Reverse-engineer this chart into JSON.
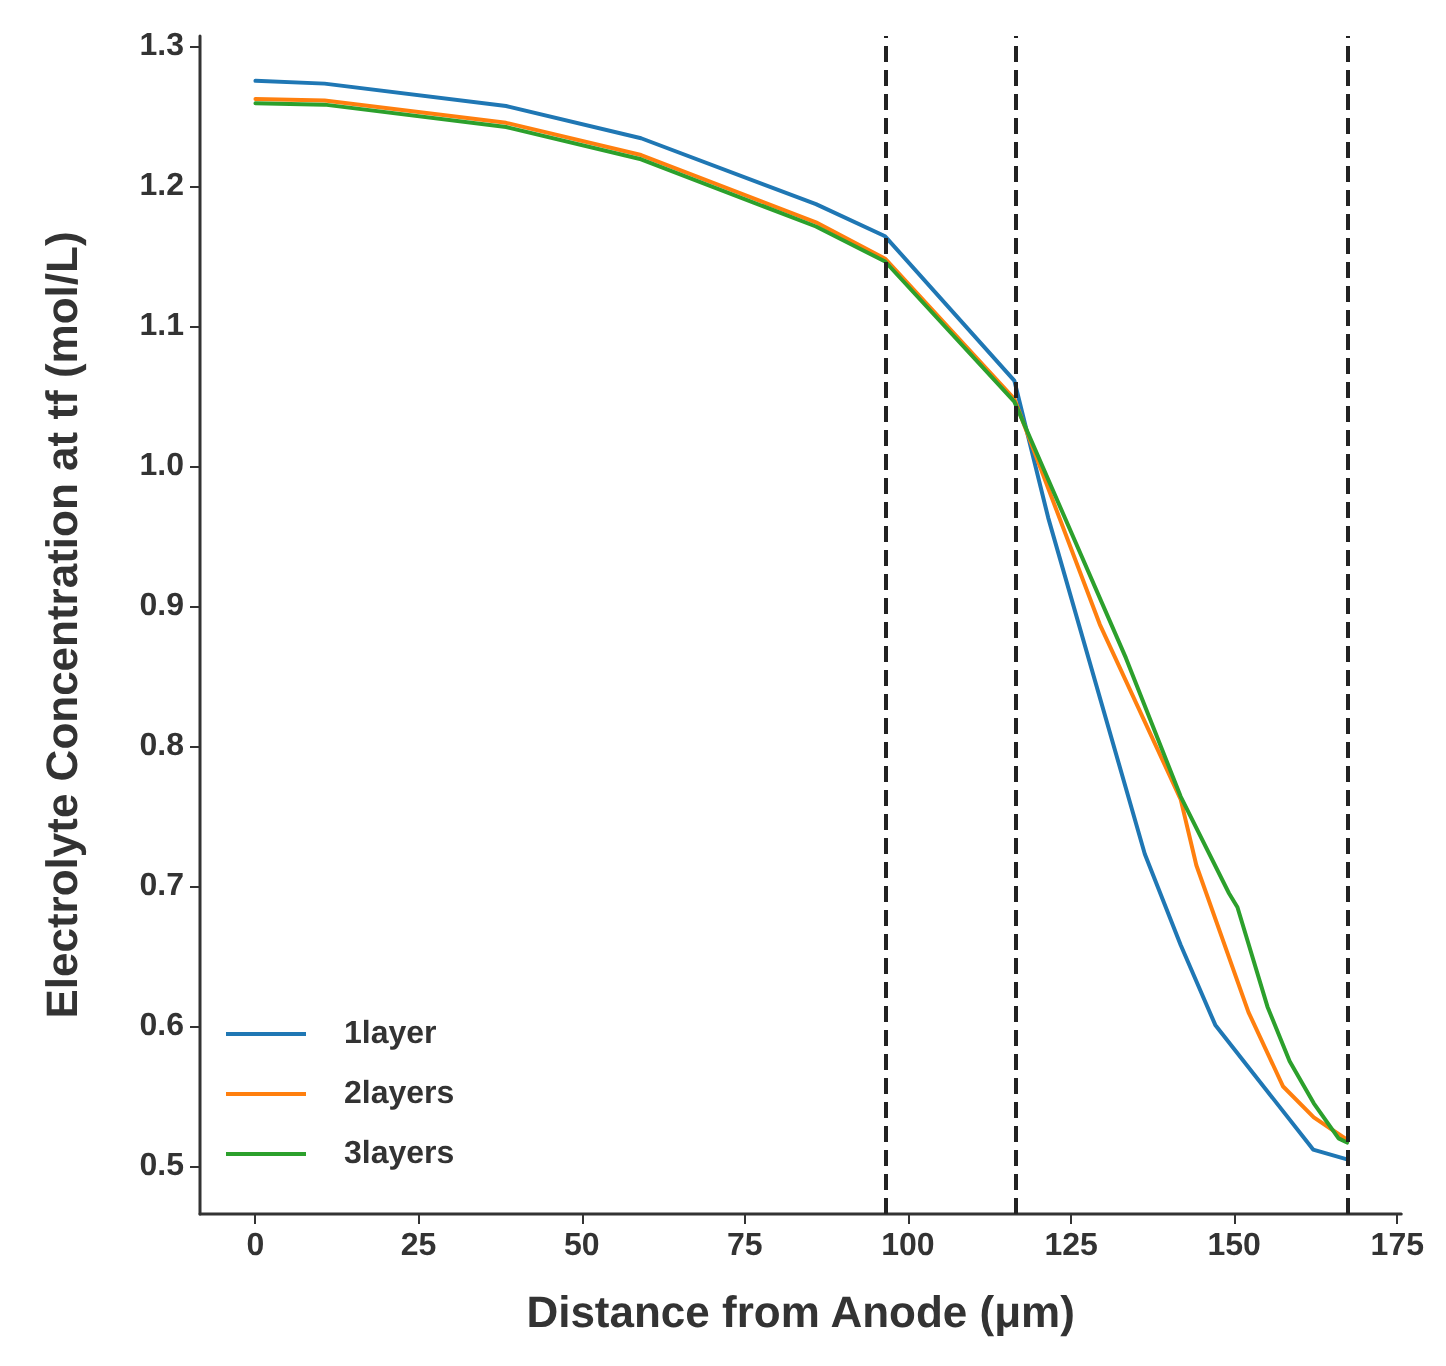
{
  "chart_data": {
    "type": "line",
    "xlabel": "Distance from Anode (μm)",
    "ylabel": "Electrolyte Concentration at tf (mol/L)",
    "xlim": [
      -8.5,
      175.6
    ],
    "xticks": [
      0,
      25,
      50,
      75,
      100,
      125,
      150,
      175
    ],
    "ylim": [
      0.466,
      1.307
    ],
    "yticks": [
      0.5,
      0.6,
      0.7,
      0.8,
      0.9,
      {
        "value": 1.0,
        "label": "1.0"
      },
      1.1,
      1.2,
      1.3
    ],
    "grid": false,
    "legend": "bottom left",
    "marker": "none",
    "line_style": "solid",
    "series": [
      {
        "name": "1layer",
        "color": "#1f77b4",
        "x": [
          0,
          10.6,
          38.4,
          59.1,
          85.9,
          96.5,
          116.3,
          121.5,
          136.3,
          141.8,
          147.1,
          162.1,
          167.3
        ],
        "values": [
          1.275,
          1.273,
          1.257,
          1.234,
          1.187,
          1.164,
          1.061,
          0.963,
          0.723,
          0.658,
          0.601,
          0.512,
          0.505
        ]
      },
      {
        "name": "2layers",
        "color": "#ff7f0e",
        "x": [
          0,
          10.6,
          38.4,
          59.1,
          85.9,
          96.5,
          116.3,
          129.4,
          141.8,
          144.2,
          152.2,
          157.5,
          162.2,
          167.3
        ],
        "values": [
          1.262,
          1.261,
          1.245,
          1.222,
          1.174,
          1.148,
          1.048,
          0.887,
          0.762,
          0.715,
          0.61,
          0.557,
          0.535,
          0.519
        ]
      },
      {
        "name": "3layers",
        "color": "#2ca02c",
        "x": [
          0,
          10.6,
          38.4,
          59.1,
          85.9,
          96.5,
          116.3,
          133.4,
          141.8,
          149.2,
          150.5,
          155.1,
          158.5,
          162.2,
          166,
          167.3
        ],
        "values": [
          1.259,
          1.258,
          1.242,
          1.219,
          1.171,
          1.146,
          1.046,
          0.863,
          0.764,
          0.695,
          0.685,
          0.614,
          0.575,
          0.545,
          0.52,
          0.517
        ]
      }
    ],
    "ref_lines": [
      {
        "axis": "x",
        "value": 96.5,
        "color": "#222222",
        "line_style": "dashed"
      },
      {
        "axis": "x",
        "value": 116.5,
        "color": "#222222",
        "line_style": "dashed"
      },
      {
        "axis": "x",
        "value": 167.5,
        "color": "#222222",
        "line_style": "dashed"
      }
    ]
  }
}
